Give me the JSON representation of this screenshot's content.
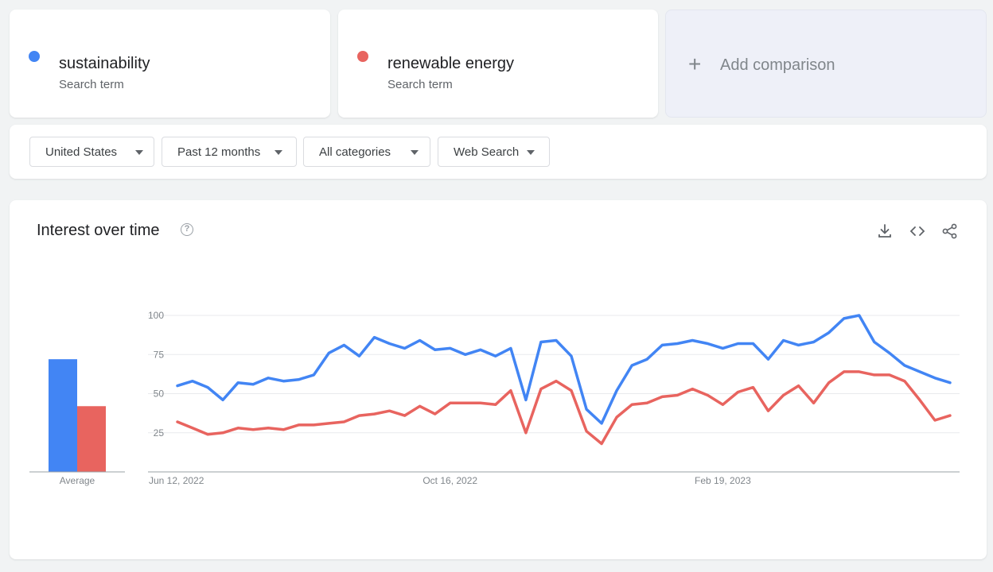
{
  "terms": [
    {
      "name": "sustainability",
      "subtitle": "Search term",
      "color": "#4285f4"
    },
    {
      "name": "renewable energy",
      "subtitle": "Search term",
      "color": "#e8645f"
    }
  ],
  "add_comparison": {
    "plus": "+",
    "label": "Add comparison"
  },
  "filters": [
    {
      "label": "United States"
    },
    {
      "label": "Past 12 months"
    },
    {
      "label": "All categories"
    },
    {
      "label": "Web Search"
    }
  ],
  "chart_section": {
    "title": "Interest over time",
    "help": "?",
    "icons": [
      "download-icon",
      "embed-code-icon",
      "share-icon"
    ]
  },
  "chart_data": [
    {
      "type": "bar",
      "categories": [
        "sustainability",
        "renewable energy"
      ],
      "values": [
        72,
        42
      ],
      "xlabel": "Average",
      "ylim": [
        0,
        100
      ],
      "colors": [
        "#4285f4",
        "#e8645f"
      ]
    },
    {
      "type": "line",
      "ylim": [
        0,
        100
      ],
      "yticks": [
        "25",
        "50",
        "75",
        "100"
      ],
      "xtick_labels": [
        {
          "label": "Jun 12, 2022",
          "index": 0
        },
        {
          "label": "Oct 16, 2022",
          "index": 18
        },
        {
          "label": "Feb 19, 2023",
          "index": 36
        }
      ],
      "grid": true,
      "series": [
        {
          "term": "sustainability",
          "color": "#4285f4",
          "values": [
            55,
            58,
            54,
            46,
            57,
            56,
            60,
            58,
            59,
            62,
            76,
            81,
            74,
            86,
            82,
            79,
            84,
            78,
            79,
            75,
            78,
            74,
            79,
            46,
            83,
            84,
            74,
            40,
            31,
            52,
            68,
            72,
            81,
            82,
            84,
            82,
            79,
            82,
            82,
            72,
            84,
            81,
            83,
            89,
            98,
            100,
            83,
            76,
            68,
            64,
            60,
            57
          ]
        },
        {
          "term": "renewable energy",
          "color": "#e8645f",
          "values": [
            32,
            28,
            24,
            25,
            28,
            27,
            28,
            27,
            30,
            30,
            31,
            32,
            36,
            37,
            39,
            36,
            42,
            37,
            44,
            44,
            44,
            43,
            52,
            25,
            53,
            58,
            52,
            26,
            18,
            35,
            43,
            44,
            48,
            49,
            53,
            49,
            43,
            51,
            54,
            39,
            49,
            55,
            44,
            57,
            64,
            64,
            62,
            62,
            58,
            46,
            33,
            36
          ]
        }
      ]
    }
  ]
}
